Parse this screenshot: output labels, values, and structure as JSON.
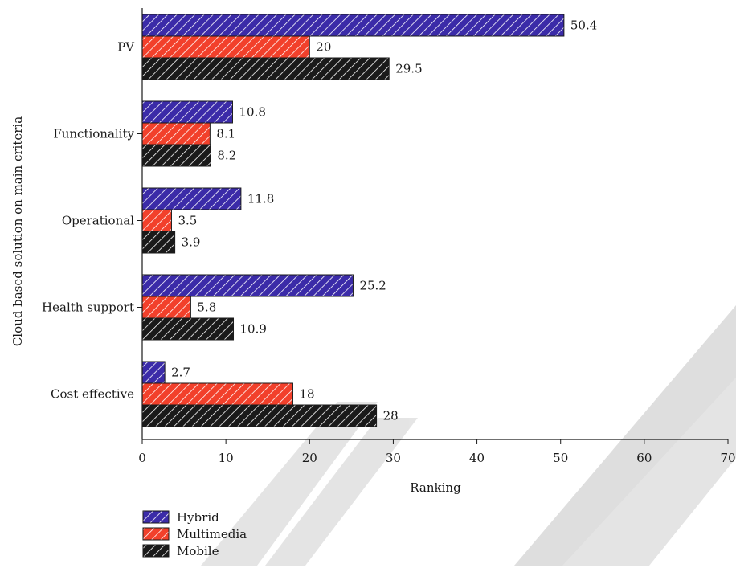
{
  "chart_data": {
    "type": "bar",
    "orientation": "horizontal",
    "categories": [
      "PV",
      "Functionality",
      "Operational",
      "Health support",
      "Cost effective"
    ],
    "series": [
      {
        "name": "Hybrid",
        "values": [
          50.4,
          10.8,
          11.8,
          25.2,
          2.7
        ],
        "color": "#3b2ba8",
        "hatch_color": "#ffffff"
      },
      {
        "name": "Multimedia",
        "values": [
          20,
          8.1,
          3.5,
          5.8,
          18
        ],
        "color": "#f2402b",
        "hatch_color": "#ffffff"
      },
      {
        "name": "Mobile",
        "values": [
          29.5,
          8.2,
          3.9,
          10.9,
          28
        ],
        "color": "#1a1a1a",
        "hatch_color": "#ffffff"
      }
    ],
    "value_labels": [
      [
        "50.4",
        "10.8",
        "11.8",
        "25.2",
        "2.7"
      ],
      [
        "20",
        "8.1",
        "3.5",
        "5.8",
        "18"
      ],
      [
        "29.5",
        "8.2",
        "3.9",
        "10.9",
        "28"
      ]
    ],
    "xlabel": "Ranking",
    "ylabel": "Cloud based solution on main criteria",
    "xlim": [
      0,
      70
    ],
    "xticks": [
      0,
      10,
      20,
      30,
      40,
      50,
      60,
      70
    ],
    "xtick_labels": [
      "0",
      "10",
      "20",
      "30",
      "40",
      "50",
      "60",
      "70"
    ],
    "grid": false,
    "legend_position": "bottom-left",
    "watermark": "RETRACTED"
  }
}
